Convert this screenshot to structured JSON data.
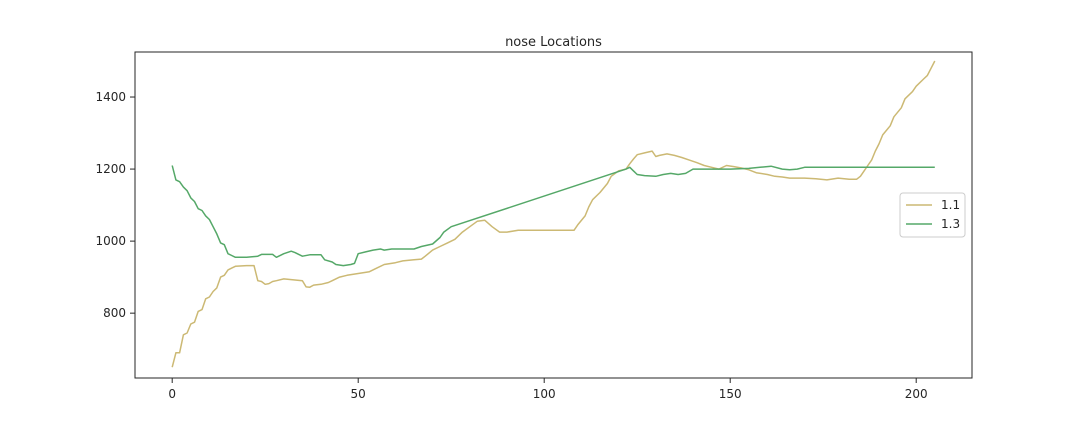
{
  "chart_data": {
    "type": "line",
    "title": "nose Locations",
    "xlabel": "",
    "ylabel": "",
    "xlim": [
      -10,
      215
    ],
    "ylim": [
      620,
      1525
    ],
    "xticks": [
      0,
      50,
      100,
      150,
      200
    ],
    "yticks": [
      800,
      1000,
      1200,
      1400
    ],
    "grid": false,
    "legend_position": "center-right",
    "series": [
      {
        "name": "1.1",
        "color": "#ccb974",
        "points": [
          [
            0,
            650
          ],
          [
            1,
            690
          ],
          [
            2,
            690
          ],
          [
            3,
            740
          ],
          [
            4,
            745
          ],
          [
            5,
            770
          ],
          [
            6,
            775
          ],
          [
            7,
            805
          ],
          [
            8,
            810
          ],
          [
            9,
            840
          ],
          [
            10,
            845
          ],
          [
            11,
            860
          ],
          [
            12,
            870
          ],
          [
            13,
            900
          ],
          [
            14,
            905
          ],
          [
            15,
            920
          ],
          [
            16,
            925
          ],
          [
            17,
            930
          ],
          [
            20,
            932
          ],
          [
            22,
            932
          ],
          [
            23,
            890
          ],
          [
            24,
            888
          ],
          [
            25,
            880
          ],
          [
            26,
            882
          ],
          [
            27,
            888
          ],
          [
            28,
            890
          ],
          [
            30,
            895
          ],
          [
            33,
            892
          ],
          [
            35,
            890
          ],
          [
            36,
            873
          ],
          [
            37,
            872
          ],
          [
            38,
            878
          ],
          [
            40,
            880
          ],
          [
            42,
            885
          ],
          [
            43,
            890
          ],
          [
            45,
            900
          ],
          [
            47,
            905
          ],
          [
            50,
            910
          ],
          [
            53,
            915
          ],
          [
            55,
            925
          ],
          [
            57,
            935
          ],
          [
            60,
            940
          ],
          [
            62,
            945
          ],
          [
            65,
            948
          ],
          [
            67,
            950
          ],
          [
            68,
            958
          ],
          [
            70,
            975
          ],
          [
            72,
            985
          ],
          [
            74,
            995
          ],
          [
            76,
            1005
          ],
          [
            78,
            1025
          ],
          [
            80,
            1040
          ],
          [
            82,
            1055
          ],
          [
            84,
            1058
          ],
          [
            86,
            1040
          ],
          [
            88,
            1025
          ],
          [
            90,
            1025
          ],
          [
            93,
            1030
          ],
          [
            96,
            1030
          ],
          [
            100,
            1030
          ],
          [
            104,
            1030
          ],
          [
            108,
            1030
          ],
          [
            109,
            1045
          ],
          [
            111,
            1070
          ],
          [
            112,
            1095
          ],
          [
            113,
            1115
          ],
          [
            115,
            1135
          ],
          [
            117,
            1160
          ],
          [
            118,
            1180
          ],
          [
            120,
            1195
          ],
          [
            122,
            1200
          ],
          [
            123,
            1215
          ],
          [
            124,
            1228
          ],
          [
            125,
            1240
          ],
          [
            127,
            1245
          ],
          [
            129,
            1250
          ],
          [
            130,
            1235
          ],
          [
            131,
            1238
          ],
          [
            133,
            1242
          ],
          [
            135,
            1238
          ],
          [
            137,
            1232
          ],
          [
            139,
            1225
          ],
          [
            141,
            1218
          ],
          [
            143,
            1210
          ],
          [
            145,
            1205
          ],
          [
            147,
            1200
          ],
          [
            149,
            1210
          ],
          [
            151,
            1207
          ],
          [
            153,
            1203
          ],
          [
            155,
            1198
          ],
          [
            157,
            1190
          ],
          [
            160,
            1185
          ],
          [
            162,
            1180
          ],
          [
            164,
            1178
          ],
          [
            166,
            1175
          ],
          [
            170,
            1175
          ],
          [
            173,
            1173
          ],
          [
            176,
            1170
          ],
          [
            179,
            1175
          ],
          [
            182,
            1172
          ],
          [
            184,
            1172
          ],
          [
            185,
            1180
          ],
          [
            186,
            1195
          ],
          [
            187,
            1210
          ],
          [
            188,
            1225
          ],
          [
            189,
            1250
          ],
          [
            190,
            1270
          ],
          [
            191,
            1295
          ],
          [
            193,
            1320
          ],
          [
            194,
            1345
          ],
          [
            196,
            1370
          ],
          [
            197,
            1395
          ],
          [
            199,
            1415
          ],
          [
            200,
            1430
          ],
          [
            202,
            1450
          ],
          [
            203,
            1460
          ],
          [
            204,
            1480
          ],
          [
            205,
            1500
          ]
        ]
      },
      {
        "name": "1.3",
        "color": "#55a868",
        "points": [
          [
            0,
            1210
          ],
          [
            1,
            1170
          ],
          [
            2,
            1165
          ],
          [
            3,
            1150
          ],
          [
            4,
            1140
          ],
          [
            5,
            1120
          ],
          [
            6,
            1110
          ],
          [
            7,
            1090
          ],
          [
            8,
            1085
          ],
          [
            9,
            1070
          ],
          [
            10,
            1060
          ],
          [
            11,
            1040
          ],
          [
            12,
            1020
          ],
          [
            13,
            995
          ],
          [
            14,
            990
          ],
          [
            15,
            965
          ],
          [
            16,
            960
          ],
          [
            17,
            955
          ],
          [
            20,
            955
          ],
          [
            23,
            958
          ],
          [
            24,
            963
          ],
          [
            27,
            963
          ],
          [
            28,
            955
          ],
          [
            30,
            965
          ],
          [
            32,
            972
          ],
          [
            33,
            968
          ],
          [
            35,
            958
          ],
          [
            37,
            962
          ],
          [
            40,
            962
          ],
          [
            41,
            948
          ],
          [
            43,
            942
          ],
          [
            44,
            935
          ],
          [
            46,
            932
          ],
          [
            48,
            935
          ],
          [
            49,
            938
          ],
          [
            50,
            965
          ],
          [
            52,
            970
          ],
          [
            54,
            975
          ],
          [
            56,
            978
          ],
          [
            57,
            975
          ],
          [
            59,
            978
          ],
          [
            62,
            978
          ],
          [
            65,
            978
          ],
          [
            67,
            985
          ],
          [
            70,
            992
          ],
          [
            72,
            1010
          ],
          [
            73,
            1025
          ],
          [
            75,
            1040
          ],
          [
            122,
            1200
          ],
          [
            123,
            1205
          ],
          [
            124,
            1195
          ],
          [
            125,
            1185
          ],
          [
            127,
            1182
          ],
          [
            130,
            1180
          ],
          [
            132,
            1185
          ],
          [
            134,
            1188
          ],
          [
            136,
            1185
          ],
          [
            138,
            1188
          ],
          [
            140,
            1200
          ],
          [
            142,
            1200
          ],
          [
            145,
            1200
          ],
          [
            150,
            1200
          ],
          [
            155,
            1202
          ],
          [
            158,
            1205
          ],
          [
            161,
            1208
          ],
          [
            164,
            1200
          ],
          [
            166,
            1198
          ],
          [
            168,
            1200
          ],
          [
            170,
            1205
          ],
          [
            175,
            1205
          ],
          [
            180,
            1205
          ],
          [
            190,
            1205
          ],
          [
            205,
            1205
          ]
        ]
      }
    ]
  }
}
